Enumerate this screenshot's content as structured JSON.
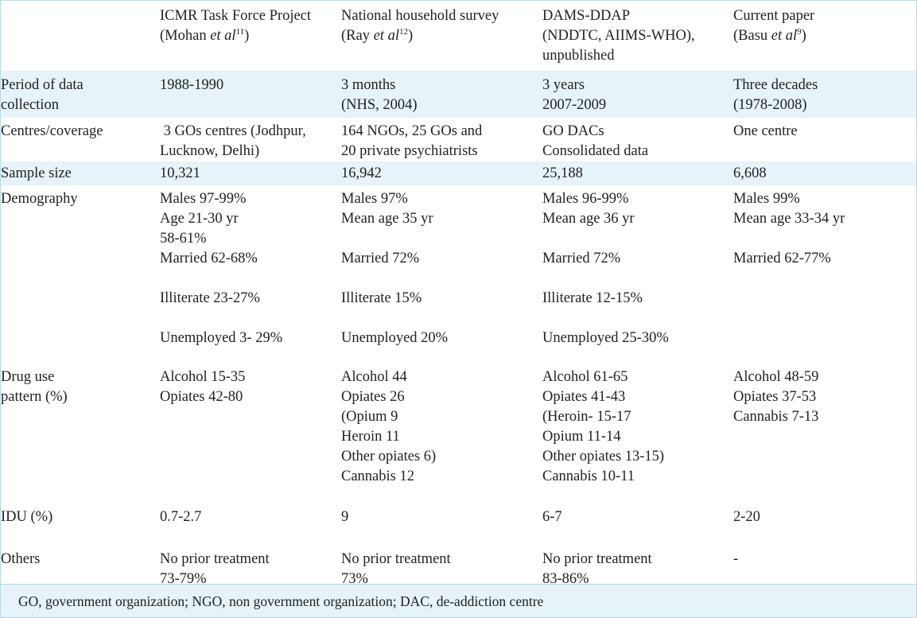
{
  "columns": [
    {
      "line1": "",
      "lines": []
    },
    {
      "line1": "ICMR Task Force Project",
      "author": "(Mohan ",
      "etal": "et al",
      "ref": "11",
      "close": ")"
    },
    {
      "line1": "National household survey",
      "author": "(Ray ",
      "etal": "et al",
      "ref": "12",
      "close": ")"
    },
    {
      "line1": "DAMS-DDAP",
      "line2": "(NDDTC, AIIMS-WHO),",
      "line3": "unpublished"
    },
    {
      "line1": "Current paper",
      "author": "(Basu ",
      "etal": "et al",
      "ref": "9",
      "close": ")"
    }
  ],
  "rows": [
    {
      "label": "Period of data\ncollection",
      "cells": [
        "1988-1990",
        "3 months\n(NHS, 2004)",
        "3 years\n2007-2009",
        "Three decades\n(1978-2008)"
      ]
    },
    {
      "label": "Centres/coverage",
      "cells": [
        " 3 GOs centres (Jodhpur,\nLucknow, Delhi)",
        "164 NGOs, 25 GOs and\n20 private psychiatrists",
        "GO DACs\nConsolidated data",
        "One centre"
      ]
    },
    {
      "label": "Sample size",
      "cells": [
        "10,321",
        "16,942",
        "25,188",
        "6,608"
      ]
    },
    {
      "label": "Demography",
      "cells": [
        "Males 97-99%\nAge 21-30 yr\n58-61%\nMarried 62-68%\n\nIlliterate 23-27%\n\nUnemployed 3- 29%",
        "Males 97%\nMean age 35 yr\n\nMarried 72%\n\nIlliterate 15%\n\nUnemployed 20%",
        "Males 96-99%\nMean age 36 yr\n\nMarried 72%\n\nIlliterate 12-15%\n\nUnemployed 25-30%",
        "Males 99%\nMean age 33-34 yr\n\nMarried 62-77%"
      ]
    },
    {
      "label": "Drug use\npattern (%)",
      "cells": [
        "Alcohol 15-35\nOpiates 42-80",
        "Alcohol 44\nOpiates 26\n(Opium 9\nHeroin 11\nOther opiates 6)\nCannabis 12",
        "Alcohol 61-65\nOpiates 41-43\n(Heroin- 15-17\nOpium 11-14\nOther opiates 13-15)\nCannabis 10-11",
        "Alcohol 48-59\nOpiates 37-53\nCannabis 7-13"
      ]
    },
    {
      "label": "IDU (%)",
      "cells": [
        "0.7-2.7",
        "9",
        "6-7",
        "2-20"
      ]
    },
    {
      "label": "Others",
      "cells": [
        "No prior treatment\n73-79%",
        "No prior treatment\n73%",
        "No prior treatment\n83-86%",
        "-"
      ]
    }
  ],
  "footer": "GO, government organization; NGO, non government organization; DAC, de-addiction centre"
}
